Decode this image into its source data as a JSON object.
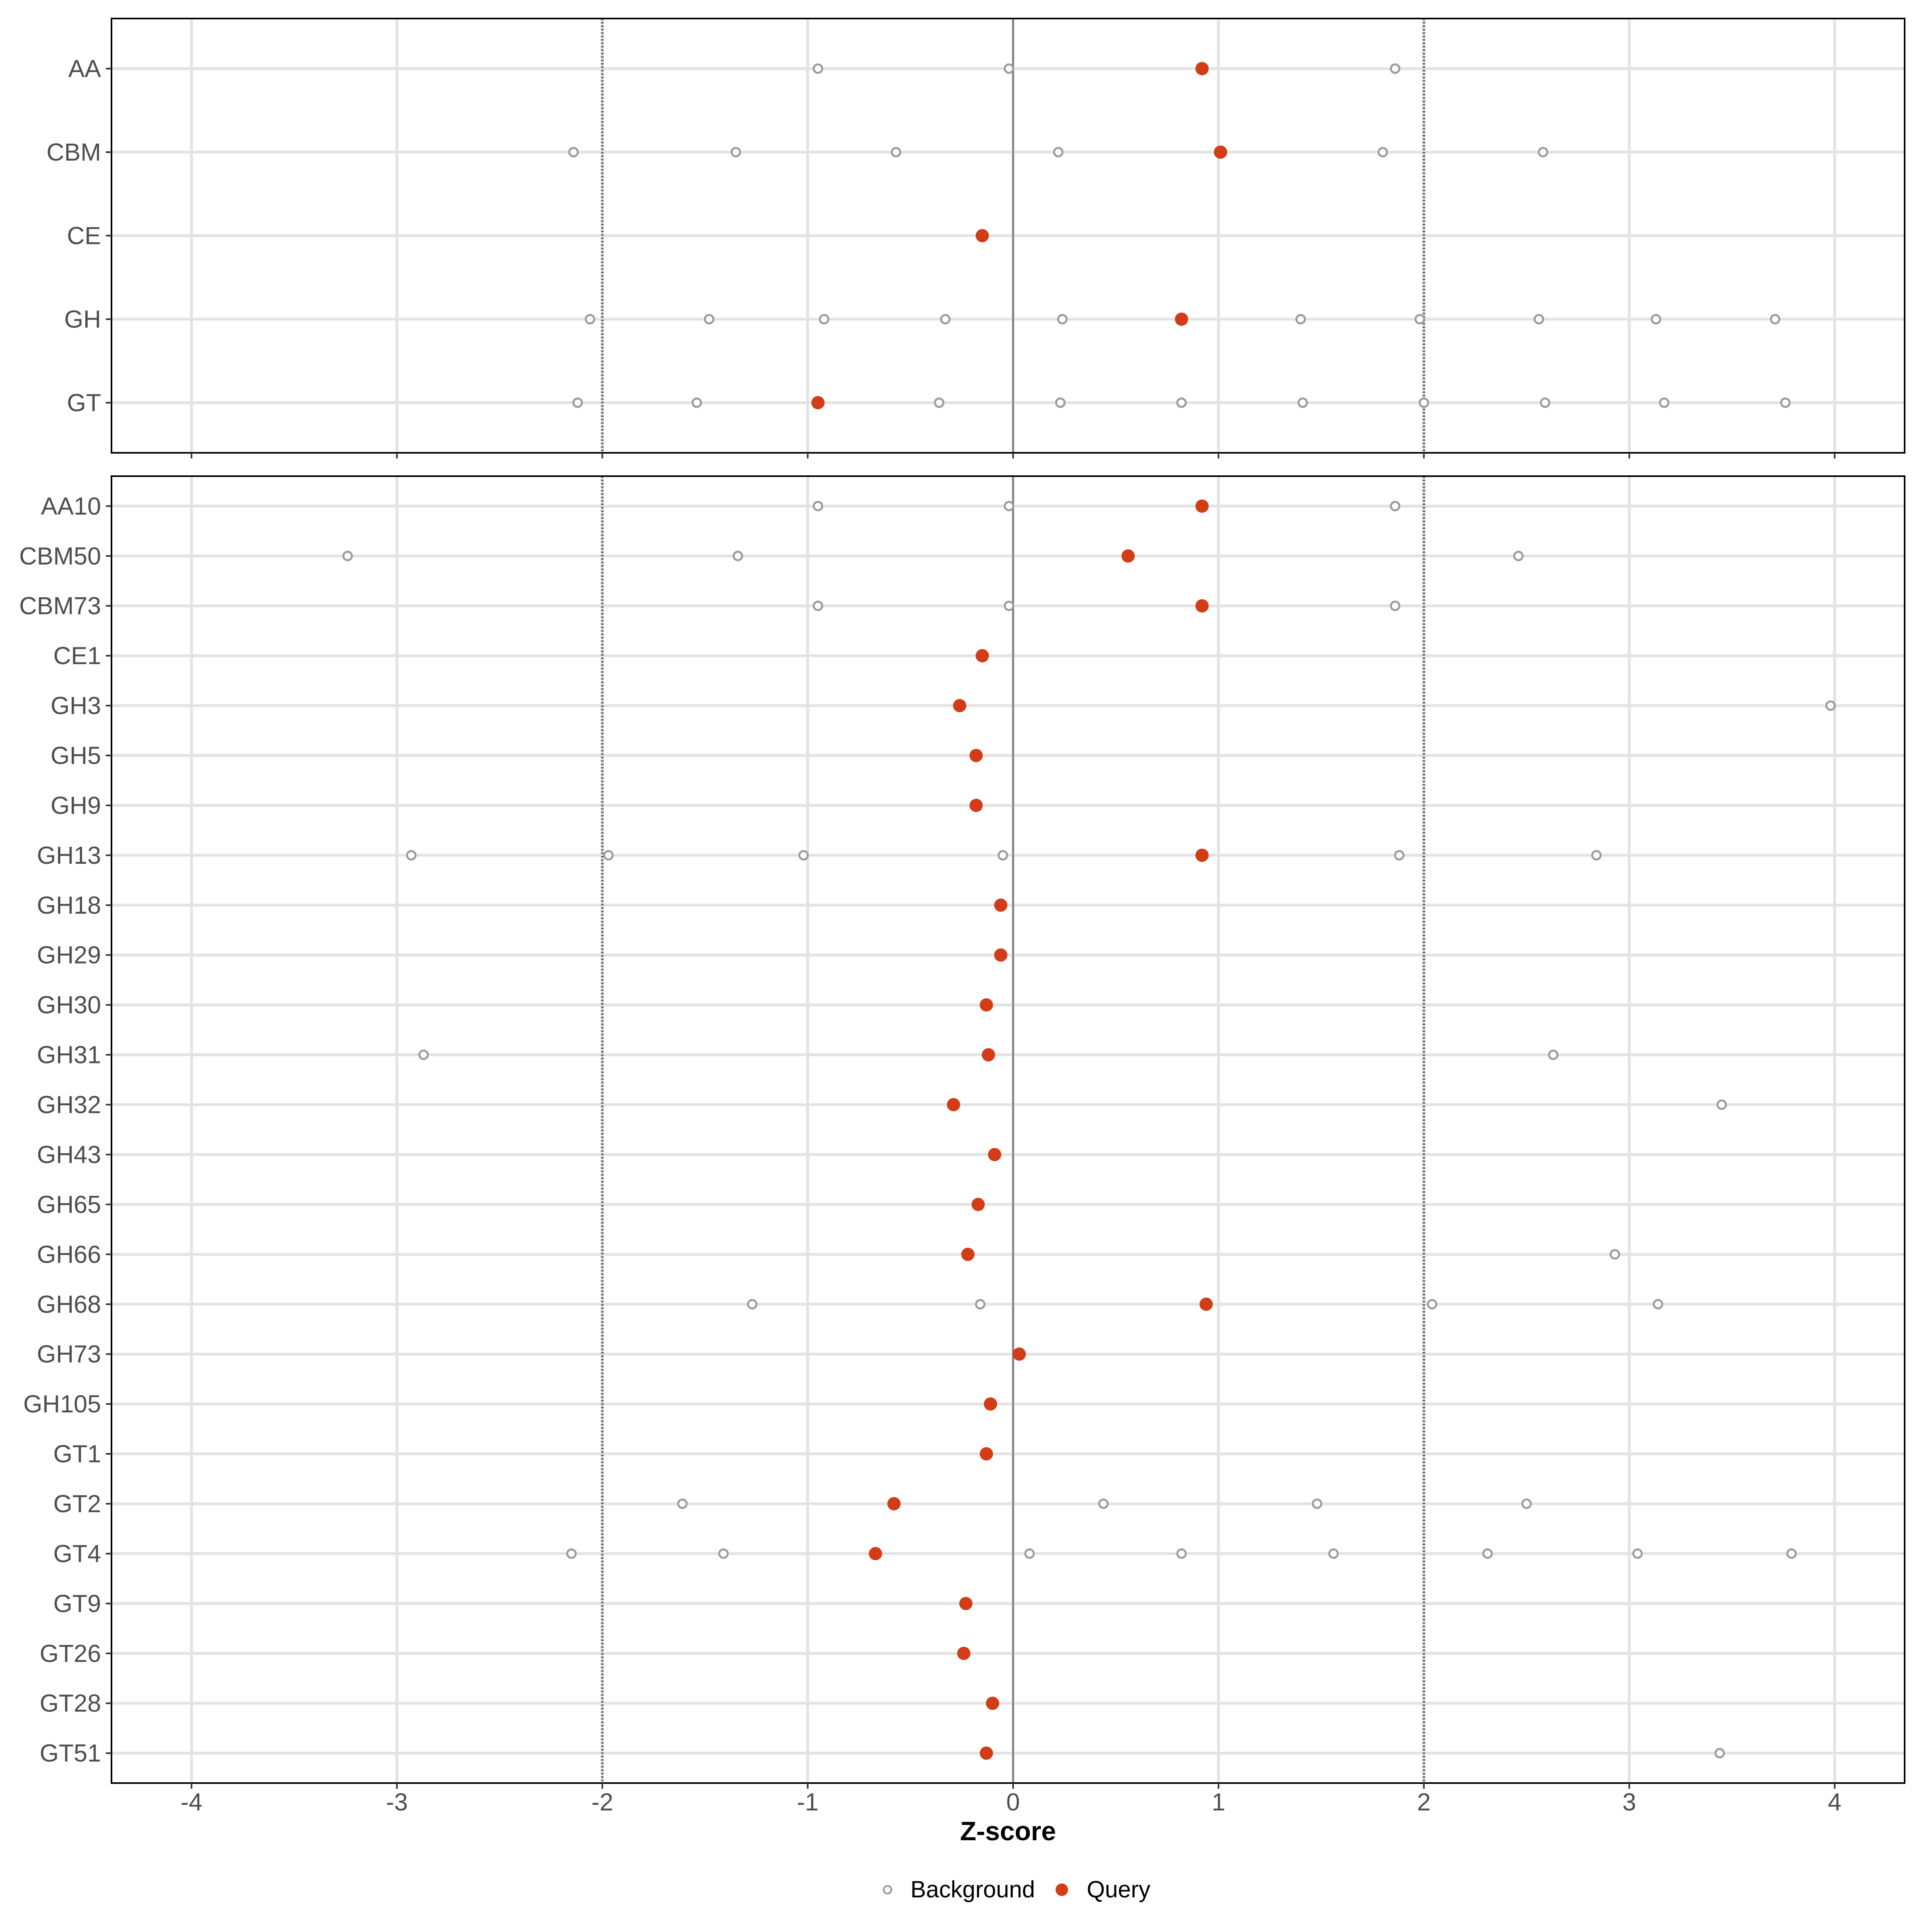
{
  "chart_data": {
    "type": "scatter",
    "xlabel": "Z-score",
    "x_ticks": [
      -4,
      -3,
      -2,
      -1,
      0,
      1,
      2,
      3,
      4
    ],
    "xlim": [
      -4.39,
      4.35
    ],
    "grid": "on",
    "reference_lines": {
      "dashed": [
        -2,
        2
      ],
      "solid": [
        0
      ]
    },
    "legend": {
      "position": "bottom",
      "items": [
        {
          "label": "Background",
          "marker": "open-circle"
        },
        {
          "label": "Query",
          "marker": "filled-circle"
        }
      ]
    },
    "colors": {
      "query": "#D23C17",
      "background_stroke": "#9C9C9C",
      "grid": "#E3E3E3",
      "axis_text": "#4D4D4D",
      "zero_line": "#7E7E7E",
      "dashed_line": "#696969",
      "border": "#000000",
      "tick": "#333333"
    },
    "panels": [
      {
        "name": "cazyme-class",
        "rows": [
          {
            "label": "AA",
            "background": [
              -0.95,
              -0.02,
              1.86
            ],
            "query": 0.92
          },
          {
            "label": "CBM",
            "background": [
              -2.14,
              -1.35,
              -0.57,
              0.22,
              1.8,
              2.58
            ],
            "query": 1.01
          },
          {
            "label": "CE",
            "background": [],
            "query": -0.15
          },
          {
            "label": "GH",
            "background": [
              -2.06,
              -1.48,
              -0.92,
              -0.33,
              0.24,
              1.4,
              1.98,
              2.56,
              3.13,
              3.71
            ],
            "query": 0.82
          },
          {
            "label": "GT",
            "background": [
              -2.12,
              -1.54,
              -0.36,
              0.23,
              0.82,
              1.41,
              2.0,
              2.59,
              3.17,
              3.76
            ],
            "query": -0.95
          }
        ]
      },
      {
        "name": "cazyme-family",
        "rows": [
          {
            "label": "AA10",
            "background": [
              -0.95,
              -0.02,
              1.86
            ],
            "query": 0.92
          },
          {
            "label": "CBM50",
            "background": [
              -3.24,
              -1.34,
              2.46
            ],
            "query": 0.56
          },
          {
            "label": "CBM73",
            "background": [
              -0.95,
              -0.02,
              1.86
            ],
            "query": 0.92
          },
          {
            "label": "CE1",
            "background": [],
            "query": -0.15
          },
          {
            "label": "GH3",
            "background": [
              3.98
            ],
            "query": -0.26
          },
          {
            "label": "GH5",
            "background": [],
            "query": -0.18
          },
          {
            "label": "GH9",
            "background": [],
            "query": -0.18
          },
          {
            "label": "GH13",
            "background": [
              -2.93,
              -1.97,
              -1.02,
              -0.05,
              1.88,
              2.84
            ],
            "query": 0.92
          },
          {
            "label": "GH18",
            "background": [],
            "query": -0.06
          },
          {
            "label": "GH29",
            "background": [],
            "query": -0.06
          },
          {
            "label": "GH30",
            "background": [],
            "query": -0.13
          },
          {
            "label": "GH31",
            "background": [
              -2.87,
              2.63
            ],
            "query": -0.12
          },
          {
            "label": "GH32",
            "background": [
              3.45
            ],
            "query": -0.29
          },
          {
            "label": "GH43",
            "background": [],
            "query": -0.09
          },
          {
            "label": "GH65",
            "background": [],
            "query": -0.17
          },
          {
            "label": "GH66",
            "background": [
              2.93
            ],
            "query": -0.22
          },
          {
            "label": "GH68",
            "background": [
              -1.27,
              -0.16,
              2.04,
              3.14
            ],
            "query": 0.94
          },
          {
            "label": "GH73",
            "background": [],
            "query": 0.03
          },
          {
            "label": "GH105",
            "background": [],
            "query": -0.11
          },
          {
            "label": "GT1",
            "background": [],
            "query": -0.13
          },
          {
            "label": "GT2",
            "background": [
              -1.61,
              0.44,
              1.48,
              2.5
            ],
            "query": -0.58
          },
          {
            "label": "GT4",
            "background": [
              -2.15,
              -1.41,
              0.08,
              0.82,
              1.56,
              2.31,
              3.04,
              3.79
            ],
            "query": -0.67
          },
          {
            "label": "GT9",
            "background": [],
            "query": -0.23
          },
          {
            "label": "GT26",
            "background": [],
            "query": -0.24
          },
          {
            "label": "GT28",
            "background": [],
            "query": -0.1
          },
          {
            "label": "GT51",
            "background": [
              3.44
            ],
            "query": -0.13
          }
        ]
      }
    ]
  }
}
